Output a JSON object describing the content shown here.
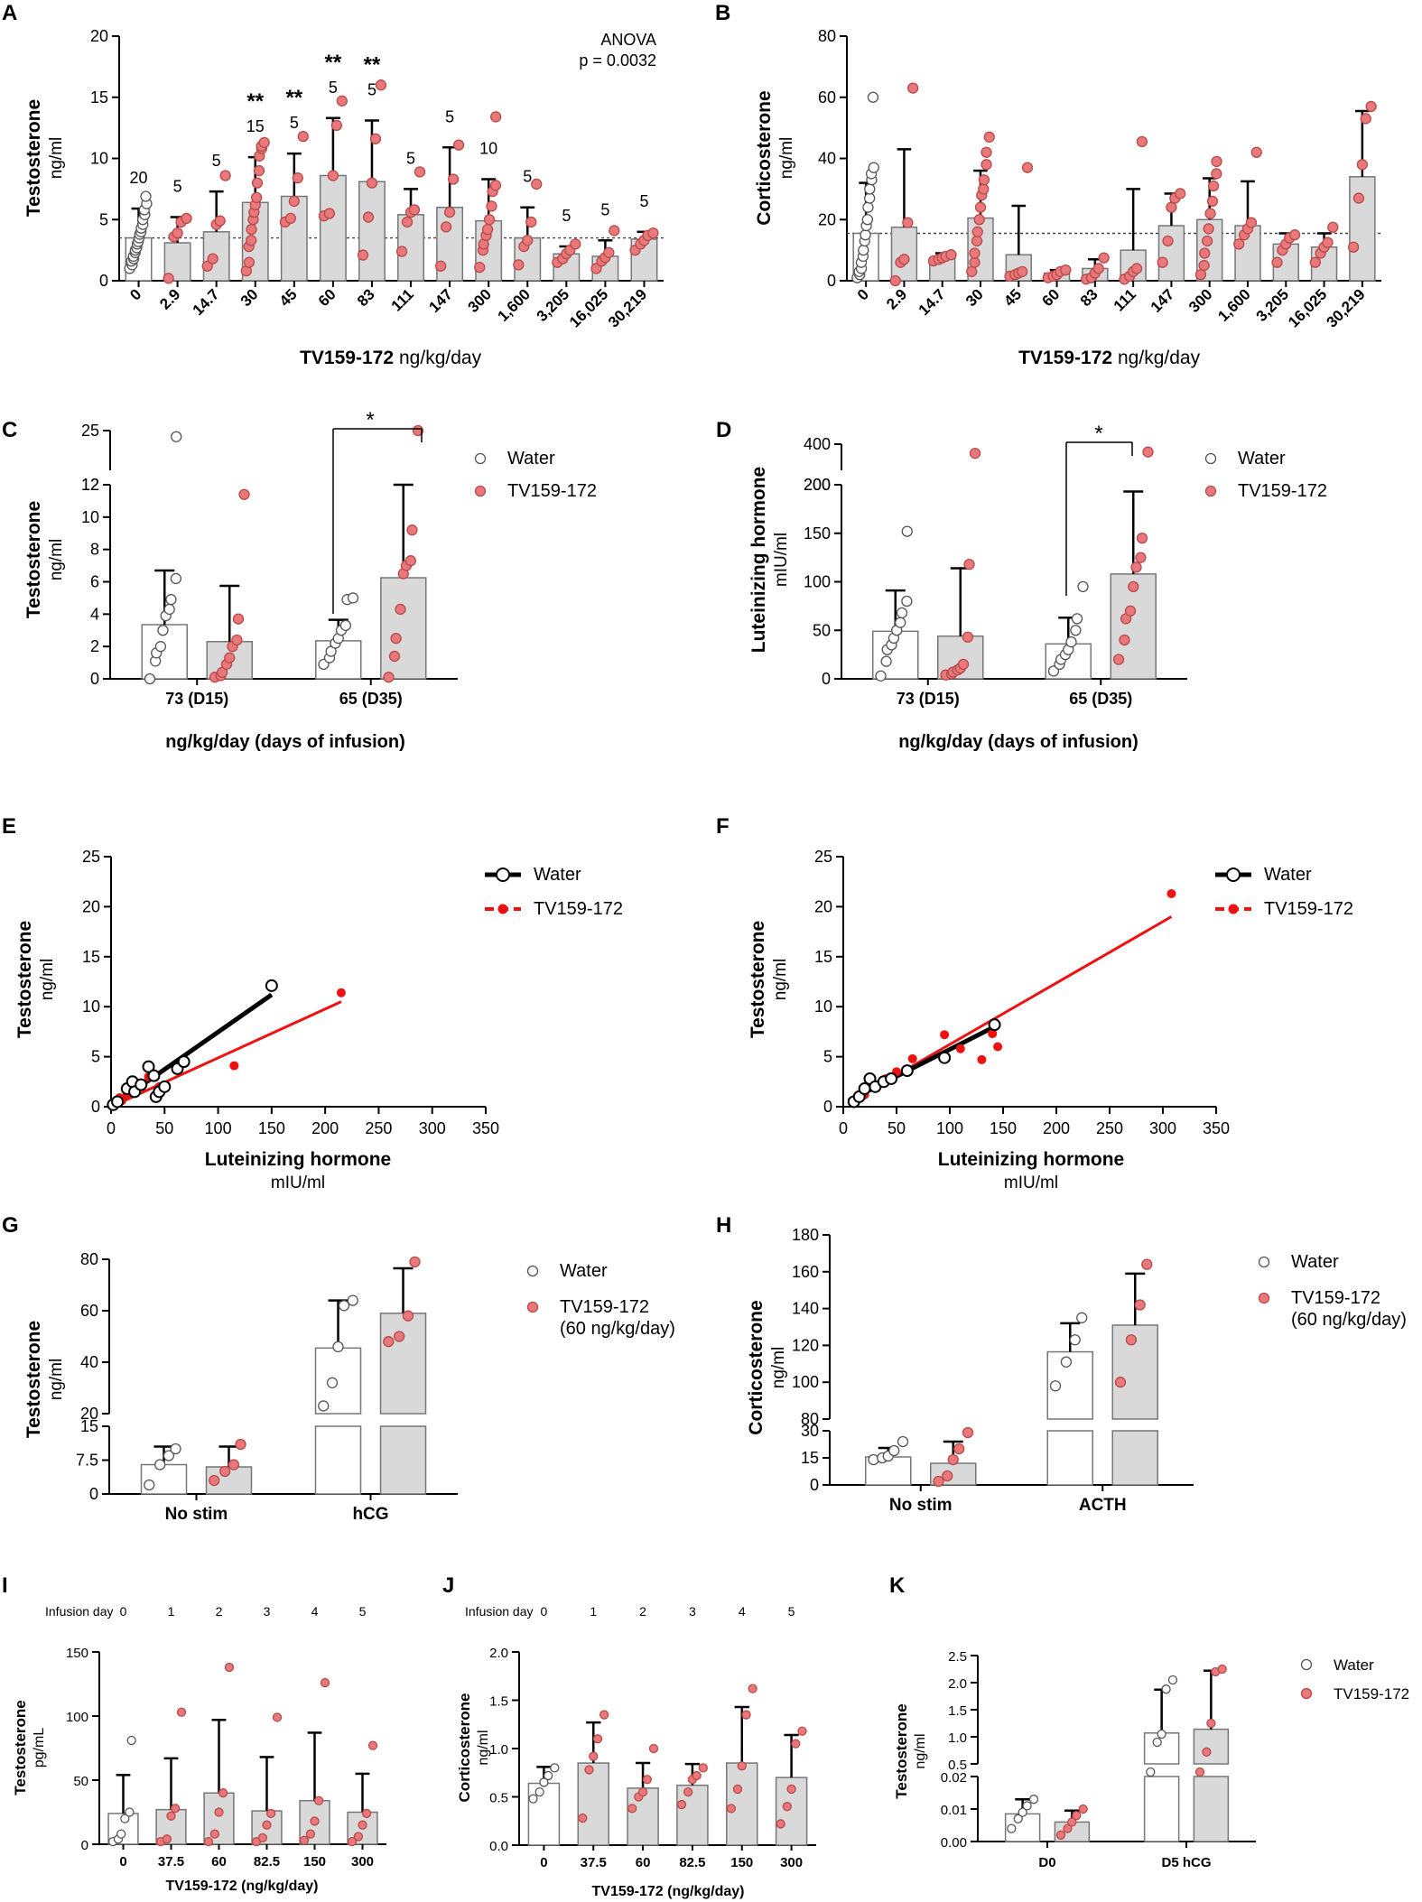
{
  "figure": {
    "water_fill": "#ffffff",
    "treat_fill": "#d9d9d9",
    "dot_color": "#e8787a",
    "dot_stroke": "#b84a4c",
    "line_red": "#ee1111",
    "line_black": "#000000"
  },
  "chart_data": [
    {
      "panel": "A",
      "type": "bar",
      "ylabel": "Testosterone",
      "yunit": "ng/ml",
      "xlabel": "TV159-172",
      "xunit": "ng/kg/day",
      "ylim": [
        0,
        20
      ],
      "yticks": [
        "0",
        "5",
        "10",
        "15",
        "20"
      ],
      "categories": [
        "0",
        "2.9",
        "14.7",
        "30",
        "45",
        "60",
        "83",
        "111",
        "147",
        "300",
        "1,600",
        "3,205",
        "16,025",
        "30,219"
      ],
      "values": [
        3.5,
        3.1,
        4.0,
        6.4,
        6.9,
        8.6,
        8.1,
        5.4,
        6.0,
        4.9,
        3.5,
        2.2,
        2.0,
        3.4
      ],
      "sd": [
        2.4,
        2.1,
        3.3,
        3.7,
        3.5,
        4.7,
        5.0,
        2.1,
        4.9,
        3.4,
        2.5,
        0.6,
        1.3,
        0.6
      ],
      "n": [
        "20",
        "5",
        "5",
        "15",
        "5",
        "5",
        "5",
        "5",
        "5",
        "10",
        "5",
        "5",
        "5",
        "5"
      ],
      "significance": [
        "",
        "",
        "",
        "**",
        "**",
        "**",
        "**",
        "",
        "",
        "",
        "",
        "",
        "",
        ""
      ],
      "points": [
        [
          1.0,
          1.3,
          1.6,
          1.8,
          2.0,
          2.3,
          2.5,
          2.7,
          3.0,
          3.2,
          3.5,
          3.8,
          4.0,
          4.3,
          4.6,
          5.0,
          5.4,
          5.8,
          6.3,
          6.9
        ],
        [
          0.2,
          3.6,
          3.9,
          4.8,
          5.1
        ],
        [
          1.2,
          1.8,
          4.6,
          4.9,
          8.6
        ],
        [
          0.8,
          1.5,
          2.8,
          3.3,
          4.2,
          5.0,
          5.6,
          6.2,
          6.8,
          8.0,
          9.0,
          10.2,
          10.8,
          11.0,
          11.3
        ],
        [
          4.8,
          5.1,
          6.5,
          8.4,
          11.8
        ],
        [
          5.3,
          5.5,
          8.6,
          12.7,
          14.7
        ],
        [
          2.1,
          5.2,
          8.0,
          11.6,
          16.0
        ],
        [
          2.4,
          4.8,
          5.6,
          5.8,
          8.9
        ],
        [
          1.2,
          4.4,
          5.6,
          8.3,
          11.1
        ],
        [
          1.1,
          2.5,
          3.0,
          3.7,
          4.2,
          5.0,
          6.1,
          7.3,
          7.8,
          13.4
        ],
        [
          1.3,
          2.8,
          3.3,
          4.8,
          7.9
        ],
        [
          1.5,
          1.8,
          2.2,
          2.5,
          3.0
        ],
        [
          1.0,
          1.6,
          1.9,
          2.3,
          4.1
        ],
        [
          2.5,
          3.0,
          3.3,
          3.7,
          3.9
        ]
      ],
      "reference_line": 3.5,
      "annotation": [
        "ANOVA",
        "p = 0.0032"
      ]
    },
    {
      "panel": "B",
      "type": "bar",
      "ylabel": "Corticosterone",
      "yunit": "ng/ml",
      "xlabel": "TV159-172",
      "xunit": "ng/kg/day",
      "ylim": [
        0,
        80
      ],
      "yticks": [
        "0",
        "20",
        "40",
        "60",
        "80"
      ],
      "categories": [
        "0",
        "2.9",
        "14.7",
        "30",
        "45",
        "60",
        "83",
        "111",
        "147",
        "300",
        "1,600",
        "3,205",
        "16,025",
        "30,219"
      ],
      "values": [
        15.5,
        17.5,
        7.5,
        20.5,
        8.5,
        2.5,
        4.0,
        10.0,
        18.0,
        20.0,
        18.0,
        12.0,
        11.0,
        34.0
      ],
      "sd": [
        16.5,
        25.5,
        1.5,
        15.5,
        16.0,
        1.0,
        3.0,
        20.0,
        10.5,
        13.5,
        14.5,
        3.5,
        4.5,
        21.5
      ],
      "points": [
        [
          1.0,
          2.0,
          3.0,
          4.0,
          6.0,
          8.0,
          10.0,
          13.0,
          15.0,
          18.0,
          20.0,
          24.0,
          27.0,
          30.0,
          33.0,
          35.0,
          37.0,
          60.0
        ],
        [
          0.0,
          6.0,
          7.0,
          19.0,
          63.0
        ],
        [
          6.5,
          7.0,
          7.5,
          8.0,
          8.5
        ],
        [
          3.0,
          6.0,
          9.0,
          13.0,
          16.0,
          20.0,
          24.0,
          28.0,
          30.0,
          33.0,
          38.0,
          42.0,
          47.0
        ],
        [
          1.5,
          2.0,
          2.5,
          3.0,
          37.0
        ],
        [
          1.0,
          1.5,
          2.0,
          3.0,
          3.5
        ],
        [
          0.5,
          1.0,
          2.5,
          4.0,
          7.5
        ],
        [
          0.5,
          1.5,
          3.0,
          4.0,
          45.5
        ],
        [
          6.0,
          13.0,
          24.0,
          27.0,
          28.5
        ],
        [
          2.0,
          5.0,
          9.0,
          13.0,
          17.0,
          22.0,
          26.0,
          31.0,
          35.0,
          39.0
        ],
        [
          12.0,
          15.0,
          17.0,
          19.0,
          42.0
        ],
        [
          6.0,
          10.0,
          12.0,
          14.0,
          15.0
        ],
        [
          6.0,
          9.0,
          11.0,
          12.5,
          17.5
        ],
        [
          11.0,
          27.0,
          38.0,
          53.0,
          57.0
        ]
      ],
      "reference_line": 15.5
    },
    {
      "panel": "C",
      "type": "bar",
      "ylabel": "Testosterone",
      "yunit": "ng/ml",
      "xlabel": "ng/kg/day (days of infusion)",
      "groups": [
        "73 (D15)",
        "65 (D35)"
      ],
      "legend": [
        "Water",
        "TV159-172"
      ],
      "yticks_lower": [
        "0",
        "2",
        "4",
        "6",
        "8",
        "10",
        "12"
      ],
      "yticks_upper": [
        "12",
        "25"
      ],
      "values": {
        "water": [
          3.35,
          2.35
        ],
        "treat": [
          2.3,
          6.25
        ]
      },
      "sd": {
        "water": [
          3.35,
          1.3
        ],
        "treat": [
          3.45,
          5.75
        ]
      },
      "points": {
        "water": [
          [
            0.0,
            1.1,
            1.6,
            2.0,
            3.0,
            3.9,
            4.3,
            4.9,
            6.2,
            23.0
          ],
          [
            0.9,
            1.3,
            1.7,
            2.2,
            2.5,
            3.0,
            3.3,
            4.9,
            5.0
          ]
        ],
        "treat": [
          [
            0.1,
            0.2,
            0.4,
            0.9,
            1.3,
            2.0,
            2.4,
            3.7,
            11.4
          ],
          [
            0.1,
            1.4,
            2.5,
            4.3,
            6.5,
            7.0,
            7.3,
            9.2,
            25.0
          ]
        ]
      },
      "significance": "*"
    },
    {
      "panel": "D",
      "type": "bar",
      "ylabel": "Luteinizing hormone",
      "yunit": "mIU/ml",
      "xlabel": "ng/kg/day (days of infusion)",
      "groups": [
        "73 (D15)",
        "65 (D35)"
      ],
      "legend": [
        "Water",
        "TV159-172"
      ],
      "yticks_lower": [
        "0",
        "50",
        "100",
        "150",
        "200"
      ],
      "yticks_upper": [
        "200",
        "400"
      ],
      "values": {
        "water": [
          49,
          36
        ],
        "treat": [
          44,
          108
        ]
      },
      "sd": {
        "water": [
          42,
          27
        ],
        "treat": [
          70,
          85
        ]
      },
      "points": {
        "water": [
          [
            3,
            18,
            30,
            35,
            42,
            50,
            58,
            68,
            80,
            152
          ],
          [
            8,
            15,
            20,
            25,
            30,
            38,
            50,
            62,
            95
          ]
        ],
        "treat": [
          [
            4,
            5,
            7,
            9,
            11,
            15,
            43,
            118,
            330
          ],
          [
            20,
            40,
            62,
            70,
            95,
            115,
            125,
            145,
            340
          ]
        ]
      },
      "significance": "*"
    },
    {
      "panel": "E",
      "type": "scatter",
      "ylabel": "Testosterone",
      "yunit": "ng/ml",
      "xlabel": "Luteinizing hormone",
      "xunit": "mIU/ml",
      "xlim": [
        0,
        350
      ],
      "ylim": [
        0,
        25
      ],
      "xticks": [
        "0",
        "50",
        "100",
        "150",
        "200",
        "250",
        "300",
        "350"
      ],
      "yticks": [
        "0",
        "5",
        "10",
        "15",
        "20",
        "25"
      ],
      "legend": [
        "Water",
        "TV159-172"
      ],
      "series": [
        {
          "name": "Water",
          "x": [
            2,
            6,
            15,
            20,
            22,
            28,
            35,
            40,
            42,
            45,
            50,
            62,
            68,
            150
          ],
          "y": [
            0.2,
            0.5,
            1.8,
            2.5,
            1.5,
            2.2,
            4.0,
            3.1,
            1.0,
            1.5,
            2.0,
            3.8,
            4.5,
            12.1
          ],
          "fit": [
            [
              0,
              0
            ],
            [
              150,
              11.2
            ]
          ]
        },
        {
          "name": "TV159-172",
          "x": [
            4,
            8,
            10,
            15,
            22,
            30,
            35,
            45,
            115,
            215
          ],
          "y": [
            0.5,
            0.9,
            0.6,
            1.2,
            1.5,
            2.3,
            3.0,
            2.0,
            4.1,
            11.4
          ],
          "fit": [
            [
              0,
              0
            ],
            [
              215,
              10.5
            ]
          ]
        }
      ]
    },
    {
      "panel": "F",
      "type": "scatter",
      "ylabel": "Testosterone",
      "yunit": "ng/ml",
      "xlabel": "Luteinizing hormone",
      "xunit": "mIU/ml",
      "xlim": [
        0,
        350
      ],
      "ylim": [
        0,
        25
      ],
      "xticks": [
        "0",
        "50",
        "100",
        "150",
        "200",
        "250",
        "300",
        "350"
      ],
      "yticks": [
        "0",
        "5",
        "10",
        "15",
        "20",
        "25"
      ],
      "legend": [
        "Water",
        "TV159-172"
      ],
      "series": [
        {
          "name": "Water",
          "x": [
            10,
            15,
            20,
            25,
            30,
            38,
            45,
            60,
            95,
            142
          ],
          "y": [
            0.5,
            1.0,
            1.8,
            2.8,
            2.0,
            2.5,
            2.8,
            3.6,
            4.9,
            8.2
          ],
          "fit": [
            [
              5,
              0.6
            ],
            [
              142,
              8.0
            ]
          ]
        },
        {
          "name": "TV159-172",
          "x": [
            12,
            20,
            30,
            40,
            50,
            65,
            95,
            110,
            130,
            140,
            145,
            308
          ],
          "y": [
            0.6,
            1.2,
            2.2,
            2.8,
            3.5,
            4.8,
            7.2,
            5.8,
            4.7,
            7.3,
            6.0,
            21.3
          ],
          "fit": [
            [
              5,
              0.4
            ],
            [
              308,
              19.0
            ]
          ]
        }
      ]
    },
    {
      "panel": "G",
      "type": "bar",
      "ylabel": "Testosterone",
      "yunit": "ng/ml",
      "groups": [
        "No stim",
        "hCG"
      ],
      "legend": [
        "Water",
        "TV159-172",
        "(60 ng/kg/day)"
      ],
      "yticks_lower": [
        "0",
        "7.5",
        "15"
      ],
      "yticks_upper": [
        "20",
        "40",
        "60",
        "80"
      ],
      "values": {
        "water": [
          6.5,
          45.5
        ],
        "treat": [
          6.0,
          59.0
        ]
      },
      "sd": {
        "water": [
          4.0,
          18.5
        ],
        "treat": [
          4.5,
          17.5
        ]
      },
      "points": {
        "water": [
          [
            2.0,
            6.5,
            8.5,
            10.0
          ],
          [
            23,
            32,
            46,
            62,
            64
          ]
        ],
        "treat": [
          [
            3.0,
            5.0,
            6.5,
            11.0
          ],
          [
            48,
            50,
            58,
            79
          ]
        ]
      }
    },
    {
      "panel": "H",
      "type": "bar",
      "ylabel": "Corticosterone",
      "yunit": "ng/ml",
      "groups": [
        "No stim",
        "ACTH"
      ],
      "legend": [
        "Water",
        "TV159-172",
        "(60 ng/kg/day)"
      ],
      "yticks_lower": [
        "0",
        "15",
        "30"
      ],
      "yticks_upper": [
        "80",
        "100",
        "120",
        "140",
        "160",
        "180"
      ],
      "values": {
        "water": [
          15.5,
          116.5
        ],
        "treat": [
          12.0,
          131.0
        ]
      },
      "sd": {
        "water": [
          5.0,
          15.5
        ],
        "treat": [
          12.0,
          28.0
        ]
      },
      "points": {
        "water": [
          [
            14,
            15,
            16,
            19,
            24
          ],
          [
            98,
            111,
            123,
            135
          ]
        ],
        "treat": [
          [
            2,
            5,
            14,
            20,
            29
          ],
          [
            100,
            123,
            142,
            164
          ]
        ]
      }
    },
    {
      "panel": "I",
      "type": "bar",
      "ylabel": "Testosterone",
      "yunit": "pg/mL",
      "xlabel": "TV159-172 (ng/kg/day)",
      "row_label": "Infusion day",
      "days": [
        "0",
        "1",
        "2",
        "3",
        "4",
        "5"
      ],
      "categories": [
        "0",
        "37.5",
        "60",
        "82.5",
        "150",
        "300"
      ],
      "ylim": [
        0,
        150
      ],
      "yticks": [
        "0",
        "50",
        "100",
        "150"
      ],
      "values": [
        24,
        27,
        40,
        26,
        34,
        25
      ],
      "sd": [
        30,
        40,
        57,
        42,
        53,
        30
      ],
      "points": [
        [
          2,
          4,
          8,
          20,
          25,
          81
        ],
        [
          2,
          4,
          22,
          28,
          103
        ],
        [
          2,
          8,
          25,
          40,
          138
        ],
        [
          2,
          5,
          15,
          24,
          99
        ],
        [
          3,
          8,
          18,
          34,
          126
        ],
        [
          2,
          6,
          15,
          24,
          77
        ]
      ]
    },
    {
      "panel": "J",
      "type": "bar",
      "ylabel": "Corticosterone",
      "yunit": "ng/ml",
      "xlabel": "TV159-172 (ng/kg/day)",
      "row_label": "Infusion day",
      "days": [
        "0",
        "1",
        "2",
        "3",
        "4",
        "5"
      ],
      "categories": [
        "0",
        "37.5",
        "60",
        "82.5",
        "150",
        "300"
      ],
      "ylim": [
        0,
        2.0
      ],
      "yticks": [
        "0.0",
        "0.5",
        "1.0",
        "1.5",
        "2.0"
      ],
      "values": [
        0.64,
        0.85,
        0.59,
        0.62,
        0.85,
        0.7
      ],
      "sd": [
        0.17,
        0.42,
        0.26,
        0.22,
        0.58,
        0.44
      ],
      "points": [
        [
          0.48,
          0.55,
          0.65,
          0.72,
          0.8
        ],
        [
          0.28,
          0.78,
          0.92,
          1.1,
          1.35
        ],
        [
          0.38,
          0.5,
          0.55,
          0.68,
          1.0
        ],
        [
          0.42,
          0.55,
          0.68,
          0.72,
          0.8
        ],
        [
          0.38,
          0.58,
          0.82,
          1.35,
          1.62
        ],
        [
          0.22,
          0.4,
          0.58,
          1.05,
          1.18
        ]
      ]
    },
    {
      "panel": "K",
      "type": "bar",
      "ylabel": "Testosterone",
      "yunit": "ng/ml",
      "groups": [
        "D0",
        "D5 hCG"
      ],
      "legend": [
        "Water",
        "TV159-172"
      ],
      "yticks_lower": [
        "0.00",
        "0.01",
        "0.02"
      ],
      "yticks_upper": [
        "0.5",
        "1.0",
        "1.5",
        "2.0",
        "2.5"
      ],
      "values": {
        "water": [
          0.0085,
          1.07
        ],
        "treat": [
          0.006,
          1.14
        ]
      },
      "sd": {
        "water": [
          0.0045,
          0.8
        ],
        "treat": [
          0.0035,
          1.08
        ]
      },
      "points": {
        "water": [
          [
            0.004,
            0.007,
            0.009,
            0.011,
            0.013
          ],
          [
            0.35,
            0.9,
            1.05,
            1.88,
            2.05
          ]
        ],
        "treat": [
          [
            0.002,
            0.004,
            0.006,
            0.008,
            0.01
          ],
          [
            0.35,
            0.72,
            1.25,
            2.2,
            2.25
          ]
        ]
      }
    }
  ]
}
